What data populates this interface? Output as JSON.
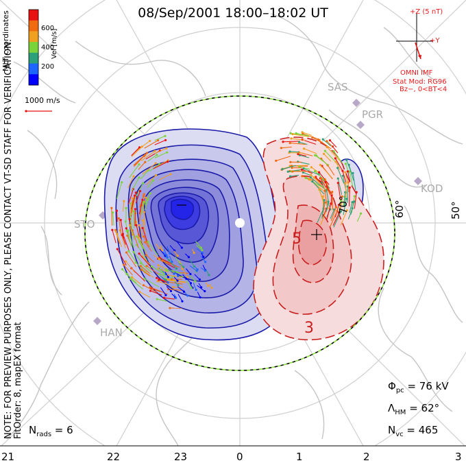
{
  "title": "08/Sep/2001  18:00–18:02  UT",
  "side_note": {
    "line1": "NOTE: FOR PREVIEW PURPOSES ONLY, PLEASE CONTACT VT-SD STAFF FOR VERIFICATION.",
    "line2": "FitOrder: 8, mapEX format"
  },
  "coordinates": "MLT coordinates",
  "colorbar": {
    "label": "Vel [m/s]",
    "ticks": [
      "600",
      "400",
      "200"
    ],
    "colors": [
      "#0000ff",
      "#1e64ff",
      "#2ca07a",
      "#7ad33a",
      "#f0a020",
      "#f06a10",
      "#e81010"
    ]
  },
  "vector_scale": "1000 m/s",
  "imf": {
    "axis_z": "+Z (5 nT)",
    "axis_y": "+Y",
    "source": "OMNI IMF",
    "stat_mod": "Stat Mod: RG96",
    "condition": "Bz−, 0<BT<4"
  },
  "stations": [
    "SAS",
    "PGR",
    "KOD",
    "STO",
    "HAN"
  ],
  "latitude_labels": [
    "70°",
    "60°",
    "50°"
  ],
  "contour_labels": [
    "5",
    "3"
  ],
  "stats": {
    "phi_sym": "Φ",
    "phi_sub": "pc",
    "phi_val": " = 76 kV",
    "lambda_sym": "Λ",
    "lambda_sub": "HM",
    "lambda_val": " = 62°",
    "nvc_sym": "N",
    "nvc_sub": "vc",
    "nvc_val": " = 465",
    "nrads_sym": "N",
    "nrads_sub": "rads",
    "nrads_val": " = 6"
  },
  "mlt_labels": [
    "21",
    "22",
    "23",
    "0",
    "1",
    "2",
    "3"
  ],
  "colors": {
    "negative_cell": "#1a1aa8",
    "positive_cell": "#c81e1e",
    "heppner_maynard": "#8be03a",
    "map_lines": "#c8c8c8"
  }
}
